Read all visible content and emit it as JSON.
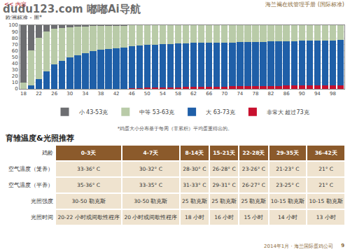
{
  "header": {
    "nav": "<< 内容",
    "title": "海兰褐在线管理手册 (国际标准)"
  },
  "watermark": "dudu123.com 嘟嘟Ai导航",
  "chart_subtitle": "欧洲标准 - 周*",
  "chart_data": {
    "type": "bar",
    "stacked": true,
    "grid": true,
    "legend": "bottom",
    "x": [
      18,
      20,
      22,
      24,
      26,
      28,
      30,
      32,
      34,
      36,
      38,
      40,
      42,
      44,
      46,
      48,
      50,
      52,
      54,
      56,
      58,
      60,
      62,
      64,
      66,
      68,
      70,
      72,
      74,
      76,
      78,
      80,
      82,
      84,
      86,
      88,
      90,
      92,
      94,
      96,
      98,
      100
    ],
    "xlim": [
      17,
      101
    ],
    "xticks": [
      18,
      22,
      26,
      30,
      34,
      38,
      42,
      46,
      50,
      54,
      58,
      62,
      66,
      70,
      74,
      78,
      82,
      86,
      90,
      94,
      98
    ],
    "ylim": [
      0,
      100
    ],
    "yticks": [
      0,
      10,
      20,
      30,
      40,
      50,
      60,
      70,
      80,
      90,
      100
    ],
    "series": [
      {
        "name": "小 43-53克",
        "color": "#6d6e71",
        "values": [
          90,
          40,
          20,
          10,
          6,
          4,
          3,
          2,
          2,
          1,
          1,
          1,
          1,
          1,
          0,
          0,
          0,
          0,
          0,
          0,
          0,
          0,
          0,
          0,
          0,
          0,
          0,
          0,
          0,
          0,
          0,
          0,
          0,
          0,
          0,
          0,
          0,
          0,
          0,
          0,
          0,
          0
        ]
      },
      {
        "name": "中等 53-63克",
        "color": "#b9cba8",
        "values": [
          10,
          55,
          65,
          62,
          56,
          52,
          48,
          45,
          42,
          40,
          38,
          36,
          35,
          34,
          33,
          32,
          31,
          31,
          30,
          30,
          29,
          29,
          28,
          28,
          28,
          27,
          27,
          27,
          26,
          26,
          26,
          26,
          25,
          25,
          25,
          25,
          24,
          24,
          24,
          24,
          24,
          23
        ]
      },
      {
        "name": "大 63-73克",
        "color": "#1f5fa8",
        "values": [
          0,
          5,
          15,
          28,
          38,
          44,
          49,
          53,
          56,
          59,
          61,
          63,
          64,
          65,
          66,
          67,
          67,
          67,
          68,
          68,
          69,
          68,
          69,
          69,
          69,
          70,
          70,
          69,
          70,
          70,
          70,
          70,
          71,
          71,
          70,
          70,
          71,
          71,
          71,
          70,
          70,
          71
        ]
      },
      {
        "name": "非常大 超过73克",
        "color": "#c8102e",
        "values": [
          0,
          0,
          0,
          0,
          0,
          0,
          0,
          0,
          0,
          0,
          0,
          0,
          0,
          0,
          1,
          1,
          2,
          2,
          2,
          2,
          2,
          3,
          3,
          3,
          3,
          3,
          3,
          4,
          4,
          4,
          4,
          4,
          4,
          4,
          5,
          5,
          5,
          5,
          5,
          6,
          6,
          6
        ]
      }
    ]
  },
  "footnote": "*鸡蛋大小分布基于每周（非累积）平均蛋重得出的。",
  "brooding": {
    "title": "育雏温度&光照推荐",
    "row_labels": [
      "鸡龄",
      "空气温度（笼养）",
      "空气温度（平养）",
      "光照强度",
      "光照时间"
    ],
    "columns": [
      {
        "age": "0-3天",
        "cells": [
          "33-36° C",
          "35-36° C",
          "30-50 勒克斯",
          "20-22 小时或间歇性程序"
        ]
      },
      {
        "age": "4-7天",
        "cells": [
          "30-32° C",
          "33-35° C",
          "30-50 勒克斯",
          "20 小时或间歇性程序"
        ]
      },
      {
        "age": "8-14天",
        "cells": [
          "28-30° C",
          "31-33° C",
          "25 勒克斯",
          "18 小时"
        ]
      },
      {
        "age": "15-21天",
        "cells": [
          "26-28° C",
          "29-31° C",
          "25 勒克斯",
          "16 小时"
        ]
      },
      {
        "age": "22-28天",
        "cells": [
          "23-26° C",
          "26-27° C",
          "25 勒克斯",
          "15 小时"
        ]
      },
      {
        "age": "29-35天",
        "cells": [
          "21-23° C",
          "23-25° C",
          "10-15 勒克斯",
          "14 小时"
        ]
      },
      {
        "age": "36-42天",
        "cells": [
          "21° C",
          "21° C",
          "10-15 勒克斯",
          "13 小时"
        ]
      }
    ]
  },
  "footer": {
    "text": "2014年1月 · 海兰国际蛋鸡公司",
    "page": "9"
  }
}
